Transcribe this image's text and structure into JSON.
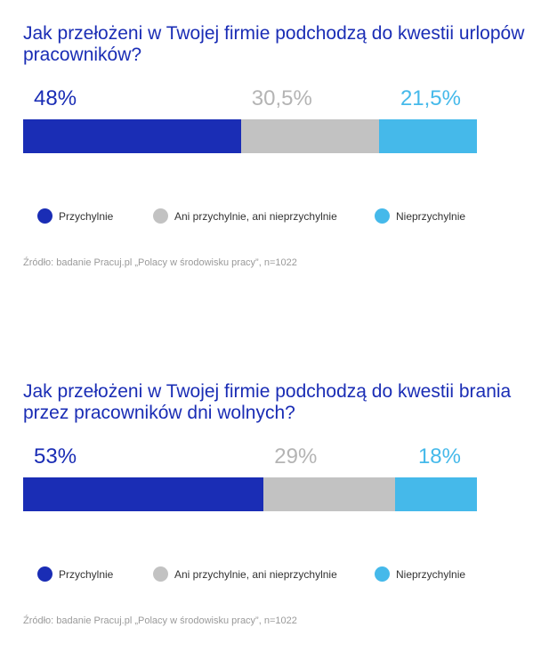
{
  "colors": {
    "Przychylnie": "#1a2db5",
    "Ani przychylnie, ani nieprzychylnie": "#c2c2c2",
    "Nieprzychylnie": "#45b9ea"
  },
  "chart_data": [
    {
      "type": "bar",
      "stacked": true,
      "orientation": "horizontal",
      "title": "Jak przełożeni w Twojej firmie podchodzą do kwestii urlopów pracowników?",
      "categories": [
        "Przychylnie",
        "Ani przychylnie, ani nieprzychylnie",
        "Nieprzychylnie"
      ],
      "values": [
        48,
        30.5,
        21.5
      ],
      "value_labels": [
        "48%",
        "30,5%",
        "21,5%"
      ],
      "xlim": [
        0,
        100
      ],
      "grid": false,
      "legend": "bottom",
      "source": "Źródło: badanie Pracuj.pl „Polacy w środowisku pracy”, n=1022"
    },
    {
      "type": "bar",
      "stacked": true,
      "orientation": "horizontal",
      "title": "Jak przełożeni w Twojej firmie podchodzą do kwestii brania przez pracowników dni wolnych?",
      "categories": [
        "Przychylnie",
        "Ani przychylnie, ani nieprzychylnie",
        "Nieprzychylnie"
      ],
      "values": [
        53,
        29,
        18
      ],
      "value_labels": [
        "53%",
        "29%",
        "18%"
      ],
      "xlim": [
        0,
        100
      ],
      "grid": false,
      "legend": "bottom",
      "source": "Źródło: badanie Pracuj.pl „Polacy w środowisku pracy”, n=1022"
    }
  ]
}
